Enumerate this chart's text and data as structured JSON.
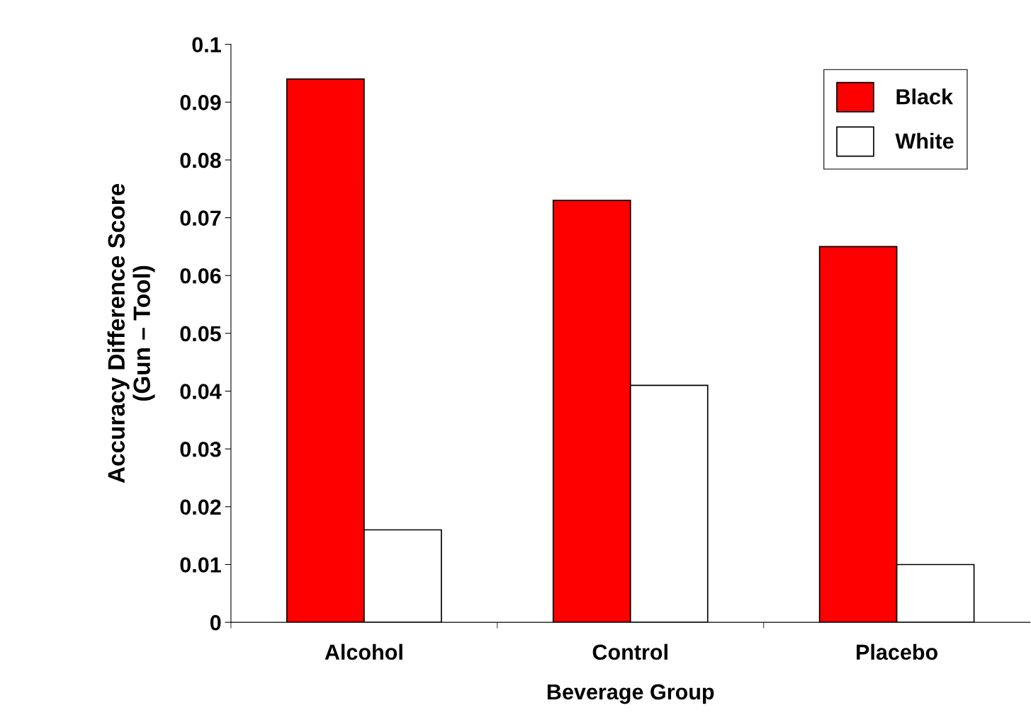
{
  "chart_data": {
    "type": "bar",
    "xlabel": "Beverage Group",
    "ylabel": "Accuracy Difference Score\n(Gun – Tool)",
    "categories": [
      "Alcohol",
      "Control",
      "Placebo"
    ],
    "series": [
      {
        "name": "Black",
        "color": "#ff0000",
        "values": [
          0.094,
          0.073,
          0.065
        ]
      },
      {
        "name": "White",
        "color": "#ffffff",
        "values": [
          0.016,
          0.041,
          0.01
        ]
      }
    ],
    "ylim": [
      0,
      0.1
    ],
    "yticks": [
      0,
      0.01,
      0.02,
      0.03,
      0.04,
      0.05,
      0.06,
      0.07,
      0.08,
      0.09,
      0.1
    ],
    "grid": false,
    "legend": "top right"
  }
}
